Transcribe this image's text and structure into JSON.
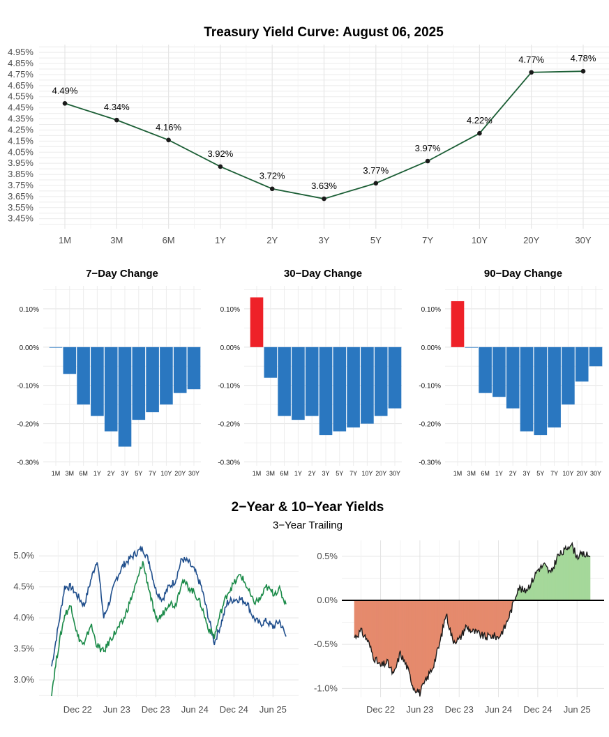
{
  "chart_data": [
    {
      "type": "line",
      "title": "Treasury Yield Curve: August 06, 2025",
      "categories": [
        "1M",
        "3M",
        "6M",
        "1Y",
        "2Y",
        "3Y",
        "5Y",
        "7Y",
        "10Y",
        "20Y",
        "30Y"
      ],
      "values": [
        4.49,
        4.34,
        4.16,
        3.92,
        3.72,
        3.63,
        3.77,
        3.97,
        4.22,
        4.77,
        4.78
      ],
      "data_labels": [
        "4.49%",
        "4.34%",
        "4.16%",
        "3.92%",
        "3.72%",
        "3.63%",
        "3.77%",
        "3.97%",
        "4.22%",
        "4.77%",
        "4.78%"
      ],
      "yticks": [
        "3.45%",
        "3.55%",
        "3.65%",
        "3.75%",
        "3.85%",
        "3.95%",
        "4.05%",
        "4.15%",
        "4.25%",
        "4.35%",
        "4.45%",
        "4.55%",
        "4.65%",
        "4.75%",
        "4.85%",
        "4.95%"
      ],
      "ylim": [
        3.36,
        5.02
      ],
      "line_color": "#1b5e35",
      "grid": true
    },
    {
      "type": "bar",
      "title": "7−Day Change",
      "categories": [
        "1M",
        "3M",
        "6M",
        "1Y",
        "2Y",
        "3Y",
        "5Y",
        "7Y",
        "10Y",
        "20Y",
        "30Y"
      ],
      "values": [
        0.0,
        -0.07,
        -0.15,
        -0.18,
        -0.22,
        -0.26,
        -0.19,
        -0.17,
        -0.15,
        -0.12,
        -0.11
      ],
      "ylim": [
        -0.31,
        0.16
      ],
      "yticks": [
        "-0.30%",
        "-0.20%",
        "-0.10%",
        "0.00%",
        "0.10%"
      ],
      "positive_color": "#ee2128",
      "negative_color": "#2a77c0"
    },
    {
      "type": "bar",
      "title": "30−Day Change",
      "categories": [
        "1M",
        "3M",
        "6M",
        "1Y",
        "2Y",
        "3Y",
        "5Y",
        "7Y",
        "10Y",
        "20Y",
        "30Y"
      ],
      "values": [
        0.13,
        -0.08,
        -0.18,
        -0.19,
        -0.18,
        -0.23,
        -0.22,
        -0.21,
        -0.2,
        -0.18,
        -0.16
      ],
      "ylim": [
        -0.31,
        0.16
      ],
      "yticks": [
        "-0.30%",
        "-0.20%",
        "-0.10%",
        "0.00%",
        "0.10%"
      ],
      "positive_color": "#ee2128",
      "negative_color": "#2a77c0"
    },
    {
      "type": "bar",
      "title": "90−Day Change",
      "categories": [
        "1M",
        "3M",
        "6M",
        "1Y",
        "2Y",
        "3Y",
        "5Y",
        "7Y",
        "10Y",
        "20Y",
        "30Y"
      ],
      "values": [
        0.12,
        0.0,
        -0.12,
        -0.13,
        -0.16,
        -0.22,
        -0.23,
        -0.21,
        -0.15,
        -0.09,
        -0.05
      ],
      "ylim": [
        -0.31,
        0.16
      ],
      "yticks": [
        "-0.30%",
        "-0.20%",
        "-0.10%",
        "0.00%",
        "0.10%"
      ],
      "positive_color": "#ee2128",
      "negative_color": "#2a77c0"
    },
    {
      "type": "line",
      "title": "2−Year & 10−Year Yields",
      "subtitle": "3−Year Trailing",
      "x_ticks": [
        "Dec 22",
        "Jun 23",
        "Dec 23",
        "Jun 24",
        "Dec 24",
        "Jun 25"
      ],
      "yticks": [
        "3.0%",
        "3.5%",
        "4.0%",
        "4.5%",
        "5.0%"
      ],
      "ylim": [
        2.72,
        5.25
      ],
      "series": [
        {
          "color": "#1f4e8c",
          "x": [
            "2022-08",
            "2022-09",
            "2022-10",
            "2022-11",
            "2022-12",
            "2023-01",
            "2023-02",
            "2023-03",
            "2023-04",
            "2023-05",
            "2023-06",
            "2023-07",
            "2023-08",
            "2023-09",
            "2023-10",
            "2023-11",
            "2023-12",
            "2024-01",
            "2024-02",
            "2024-03",
            "2024-04",
            "2024-05",
            "2024-06",
            "2024-07",
            "2024-08",
            "2024-09",
            "2024-10",
            "2024-11",
            "2024-12",
            "2025-01",
            "2025-02",
            "2025-03",
            "2025-04",
            "2025-05",
            "2025-06",
            "2025-07",
            "2025-08"
          ],
          "values": [
            3.22,
            3.85,
            4.5,
            4.5,
            4.35,
            4.2,
            4.6,
            4.95,
            4.0,
            4.3,
            4.65,
            4.85,
            4.95,
            5.05,
            5.12,
            4.9,
            4.45,
            4.3,
            4.5,
            4.6,
            4.95,
            4.9,
            4.75,
            4.5,
            4.05,
            3.6,
            3.9,
            4.25,
            4.3,
            4.3,
            4.25,
            4.0,
            3.9,
            3.95,
            3.85,
            3.95,
            3.7
          ]
        },
        {
          "color": "#1a8a48",
          "x": [
            "2022-08",
            "2022-09",
            "2022-10",
            "2022-11",
            "2022-12",
            "2023-01",
            "2023-02",
            "2023-03",
            "2023-04",
            "2023-05",
            "2023-06",
            "2023-07",
            "2023-08",
            "2023-09",
            "2023-10",
            "2023-11",
            "2023-12",
            "2024-01",
            "2024-02",
            "2024-03",
            "2024-04",
            "2024-05",
            "2024-06",
            "2024-07",
            "2024-08",
            "2024-09",
            "2024-10",
            "2024-11",
            "2024-12",
            "2025-01",
            "2025-02",
            "2025-03",
            "2025-04",
            "2025-05",
            "2025-06",
            "2025-07",
            "2025-08"
          ],
          "values": [
            2.8,
            3.5,
            4.05,
            4.2,
            3.7,
            3.55,
            3.9,
            3.55,
            3.45,
            3.65,
            3.8,
            3.95,
            4.25,
            4.55,
            4.9,
            4.45,
            3.95,
            4.05,
            4.25,
            4.2,
            4.6,
            4.5,
            4.4,
            4.2,
            3.85,
            3.7,
            4.1,
            4.4,
            4.55,
            4.7,
            4.5,
            4.25,
            4.3,
            4.5,
            4.4,
            4.45,
            4.22
          ]
        }
      ]
    },
    {
      "type": "area",
      "x_ticks": [
        "Dec 22",
        "Jun 23",
        "Dec 23",
        "Jun 24",
        "Dec 24",
        "Jun 25"
      ],
      "yticks": [
        "-1.0%",
        "-0.5%",
        "0.0%",
        "0.5%"
      ],
      "ylim": [
        -1.1,
        0.68
      ],
      "positive_color": "#a5d89a",
      "negative_color": "#e58a6d",
      "x": [
        "2022-08",
        "2022-09",
        "2022-10",
        "2022-11",
        "2022-12",
        "2023-01",
        "2023-02",
        "2023-03",
        "2023-04",
        "2023-05",
        "2023-06",
        "2023-07",
        "2023-08",
        "2023-09",
        "2023-10",
        "2023-11",
        "2023-12",
        "2024-01",
        "2024-02",
        "2024-03",
        "2024-04",
        "2024-05",
        "2024-06",
        "2024-07",
        "2024-08",
        "2024-09",
        "2024-10",
        "2024-11",
        "2024-12",
        "2025-01",
        "2025-02",
        "2025-03",
        "2025-04",
        "2025-05",
        "2025-06",
        "2025-07",
        "2025-08"
      ],
      "values": [
        -0.42,
        -0.35,
        -0.45,
        -0.65,
        -0.75,
        -0.7,
        -0.85,
        -0.6,
        -0.75,
        -0.98,
        -1.05,
        -0.9,
        -0.75,
        -0.5,
        -0.15,
        -0.45,
        -0.45,
        -0.3,
        -0.35,
        -0.38,
        -0.42,
        -0.4,
        -0.42,
        -0.3,
        -0.1,
        0.15,
        0.1,
        0.2,
        0.35,
        0.4,
        0.3,
        0.5,
        0.55,
        0.65,
        0.5,
        0.52,
        0.5
      ]
    }
  ]
}
